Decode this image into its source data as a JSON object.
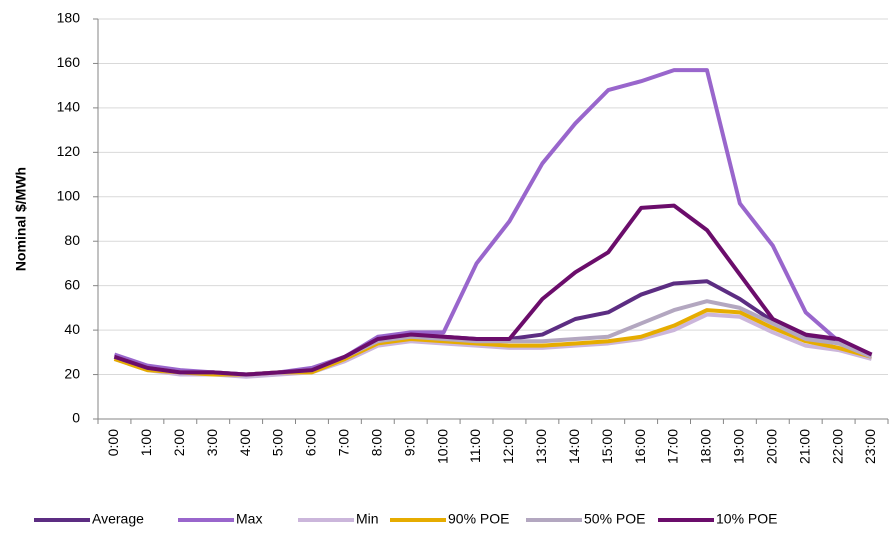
{
  "chart_data": {
    "type": "line",
    "y_label": "Nominal $/MWh",
    "categories": [
      "0:00",
      "1:00",
      "2:00",
      "3:00",
      "4:00",
      "5:00",
      "6:00",
      "7:00",
      "8:00",
      "9:00",
      "10:00",
      "11:00",
      "12:00",
      "13:00",
      "14:00",
      "15:00",
      "16:00",
      "17:00",
      "18:00",
      "19:00",
      "20:00",
      "21:00",
      "22:00",
      "23:00"
    ],
    "series": [
      {
        "name": "Average",
        "color": "#5c2d82",
        "values": [
          28,
          23,
          21,
          21,
          20,
          21,
          22,
          28,
          36,
          38,
          37,
          36,
          36,
          38,
          45,
          48,
          56,
          61,
          62,
          54,
          44,
          37,
          35,
          29
        ]
      },
      {
        "name": "Max",
        "color": "#9966cc",
        "values": [
          29,
          24,
          22,
          21,
          20,
          21,
          23,
          28,
          37,
          39,
          39,
          70,
          89,
          115,
          133,
          148,
          152,
          157,
          157,
          97,
          78,
          48,
          35,
          29
        ]
      },
      {
        "name": "Min",
        "color": "#cbb6db",
        "values": [
          27,
          22,
          20,
          20,
          19,
          20,
          21,
          26,
          33,
          35,
          34,
          33,
          32,
          32,
          33,
          34,
          36,
          40,
          47,
          46,
          39,
          33,
          31,
          27
        ]
      },
      {
        "name": "90% POE",
        "color": "#e6ac00",
        "values": [
          27,
          22,
          21,
          20,
          20,
          21,
          21,
          27,
          34,
          36,
          35,
          34,
          33,
          33,
          34,
          35,
          37,
          42,
          49,
          48,
          41,
          35,
          32,
          28
        ]
      },
      {
        "name": "50% POE",
        "color": "#b3a7c0",
        "values": [
          28,
          23,
          21,
          21,
          20,
          21,
          22,
          28,
          35,
          37,
          36,
          35,
          35,
          35,
          36,
          37,
          43,
          49,
          53,
          50,
          43,
          36,
          34,
          28
        ]
      },
      {
        "name": "10% POE",
        "color": "#6b0d6b",
        "values": [
          28,
          23,
          21,
          21,
          20,
          21,
          22,
          28,
          36,
          38,
          37,
          36,
          36,
          54,
          66,
          75,
          95,
          96,
          85,
          65,
          45,
          38,
          36,
          29
        ]
      }
    ],
    "ylim": [
      0,
      180
    ],
    "yticks": [
      0,
      20,
      40,
      60,
      80,
      100,
      120,
      140,
      160,
      180
    ],
    "grid": true,
    "legend": "bottom"
  }
}
